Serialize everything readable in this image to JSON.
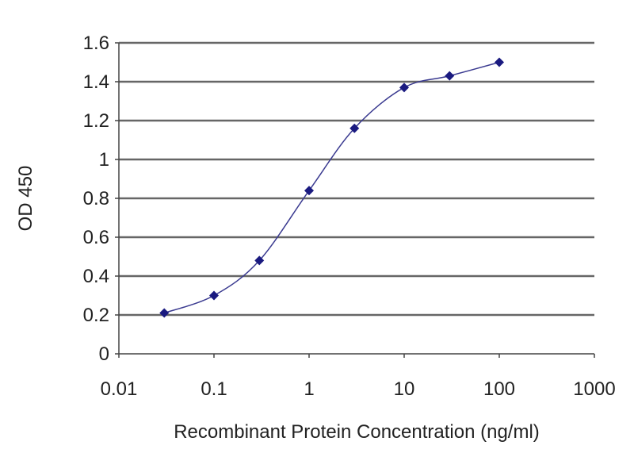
{
  "chart_data": {
    "type": "line",
    "title": "",
    "xlabel": "Recombinant Protein Concentration (ng/ml)",
    "ylabel": "OD 450",
    "x_scale": "log",
    "xlim": [
      0.01,
      1000
    ],
    "ylim": [
      0,
      1.6
    ],
    "x_ticks": [
      "0.01",
      "0.1",
      "1",
      "10",
      "100",
      "1000"
    ],
    "y_ticks": [
      "0",
      "0.2",
      "0.4",
      "0.6",
      "0.8",
      "1",
      "1.2",
      "1.4",
      "1.6"
    ],
    "grid": "horizontal",
    "series": [
      {
        "x": [
          0.03,
          0.1,
          0.3,
          1,
          3,
          10,
          30,
          100
        ],
        "y": [
          0.21,
          0.3,
          0.48,
          0.84,
          1.16,
          1.37,
          1.43,
          1.5
        ],
        "color": "#1a1a80",
        "marker": "diamond",
        "line": "smooth"
      }
    ]
  }
}
